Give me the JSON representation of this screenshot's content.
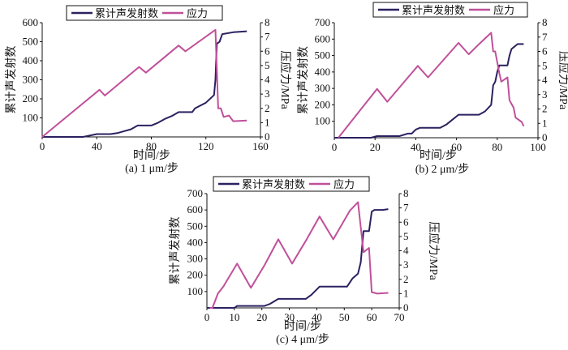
{
  "colors": {
    "ae": "#2b2160",
    "stress": "#c0509a"
  },
  "chart_data": [
    {
      "type": "line",
      "caption": "(a) 1 μm/步",
      "xlabel": "时间/步",
      "ylabel": "累计声发射数",
      "y2label": "压应力/MPa",
      "xlim": [
        0,
        160
      ],
      "xticks": [
        0,
        40,
        80,
        120,
        160
      ],
      "ylim": [
        0,
        600
      ],
      "yticks": [
        100,
        200,
        300,
        400,
        500,
        600
      ],
      "y2lim": [
        0,
        8
      ],
      "y2ticks": [
        0,
        1,
        2,
        3,
        4,
        5,
        6,
        7,
        8
      ],
      "legend": [
        "累计声发射数",
        "应力"
      ],
      "series": [
        {
          "name": "累计声发射数",
          "axis": "left",
          "points": [
            [
              0,
              0
            ],
            [
              30,
              0
            ],
            [
              40,
              15
            ],
            [
              50,
              15
            ],
            [
              55,
              20
            ],
            [
              60,
              30
            ],
            [
              65,
              40
            ],
            [
              70,
              60
            ],
            [
              80,
              60
            ],
            [
              85,
              75
            ],
            [
              90,
              95
            ],
            [
              95,
              110
            ],
            [
              100,
              130
            ],
            [
              110,
              130
            ],
            [
              112,
              150
            ],
            [
              120,
              180
            ],
            [
              126,
              220
            ],
            [
              127,
              300
            ],
            [
              128,
              490
            ],
            [
              130,
              500
            ],
            [
              132,
              540
            ],
            [
              140,
              550
            ],
            [
              150,
              555
            ]
          ]
        },
        {
          "name": "应力",
          "axis": "right",
          "points": [
            [
              0,
              0
            ],
            [
              42,
              3.3
            ],
            [
              46,
              2.9
            ],
            [
              71,
              4.9
            ],
            [
              76,
              4.5
            ],
            [
              100,
              6.4
            ],
            [
              105,
              6.0
            ],
            [
              127,
              7.5
            ],
            [
              129,
              2.0
            ],
            [
              131,
              2.0
            ],
            [
              133,
              1.4
            ],
            [
              137,
              1.5
            ],
            [
              140,
              1.1
            ],
            [
              150,
              1.15
            ]
          ]
        }
      ]
    },
    {
      "type": "line",
      "caption": "(b) 2 μm/步",
      "xlabel": "时间/步",
      "ylabel": "累计声发射数",
      "y2label": "压应力/MPa",
      "xlim": [
        0,
        100
      ],
      "xticks": [
        0,
        20,
        40,
        60,
        80,
        100
      ],
      "ylim": [
        0,
        700
      ],
      "yticks": [
        100,
        200,
        300,
        400,
        500,
        600,
        700
      ],
      "y2lim": [
        0,
        8
      ],
      "y2ticks": [
        0,
        1,
        2,
        3,
        4,
        5,
        6,
        7,
        8
      ],
      "legend": [
        "累计声发射数",
        "应力"
      ],
      "series": [
        {
          "name": "累计声发射数",
          "axis": "left",
          "points": [
            [
              0,
              0
            ],
            [
              18,
              0
            ],
            [
              21,
              10
            ],
            [
              32,
              10
            ],
            [
              36,
              25
            ],
            [
              38,
              25
            ],
            [
              40,
              50
            ],
            [
              42,
              60
            ],
            [
              52,
              60
            ],
            [
              55,
              80
            ],
            [
              58,
              110
            ],
            [
              61,
              140
            ],
            [
              71,
              140
            ],
            [
              74,
              160
            ],
            [
              77,
              200
            ],
            [
              78,
              320
            ],
            [
              79,
              340
            ],
            [
              80,
              400
            ],
            [
              81,
              440
            ],
            [
              85,
              440
            ],
            [
              86,
              500
            ],
            [
              87,
              540
            ],
            [
              90,
              570
            ],
            [
              93,
              570
            ]
          ]
        },
        {
          "name": "应力",
          "axis": "right",
          "points": [
            [
              2,
              0
            ],
            [
              21,
              3.4
            ],
            [
              26,
              2.5
            ],
            [
              41,
              5.0
            ],
            [
              46,
              4.2
            ],
            [
              61,
              6.6
            ],
            [
              66,
              5.8
            ],
            [
              71,
              6.5
            ],
            [
              77,
              7.3
            ],
            [
              78,
              6.0
            ],
            [
              79,
              6.0
            ],
            [
              81,
              4.5
            ],
            [
              82,
              3.9
            ],
            [
              85,
              4.2
            ],
            [
              86,
              2.6
            ],
            [
              88,
              2.1
            ],
            [
              89,
              1.4
            ],
            [
              92,
              1.1
            ],
            [
              93,
              0.8
            ]
          ]
        }
      ]
    },
    {
      "type": "line",
      "caption": "(c) 4 μm/步",
      "xlabel": "时间/步",
      "ylabel": "累计声发射数",
      "y2label": "压应力/MPa",
      "xlim": [
        0,
        70
      ],
      "xticks": [
        0,
        10,
        20,
        30,
        40,
        50,
        60,
        70
      ],
      "ylim": [
        0,
        700
      ],
      "yticks": [
        100,
        200,
        300,
        400,
        500,
        600,
        700
      ],
      "y2lim": [
        0,
        8
      ],
      "y2ticks": [
        0,
        1,
        2,
        3,
        4,
        5,
        6,
        7,
        8
      ],
      "legend": [
        "累计声发射数",
        "应力"
      ],
      "series": [
        {
          "name": "累计声发射数",
          "axis": "left",
          "points": [
            [
              0,
              0
            ],
            [
              10,
              0
            ],
            [
              11,
              12
            ],
            [
              21,
              12
            ],
            [
              23,
              25
            ],
            [
              26,
              55
            ],
            [
              36,
              55
            ],
            [
              38,
              80
            ],
            [
              41,
              130
            ],
            [
              51,
              130
            ],
            [
              53,
              180
            ],
            [
              55,
              210
            ],
            [
              56,
              280
            ],
            [
              57,
              470
            ],
            [
              59,
              470
            ],
            [
              60,
              590
            ],
            [
              61,
              600
            ],
            [
              64,
              600
            ],
            [
              66,
              605
            ]
          ]
        },
        {
          "name": "应力",
          "axis": "right",
          "points": [
            [
              1,
              0
            ],
            [
              2,
              0
            ],
            [
              4,
              1.0
            ],
            [
              6,
              1.5
            ],
            [
              11,
              3.1
            ],
            [
              16,
              1.4
            ],
            [
              21,
              3.0
            ],
            [
              26,
              4.8
            ],
            [
              31,
              3.1
            ],
            [
              36,
              4.7
            ],
            [
              41,
              6.4
            ],
            [
              46,
              4.8
            ],
            [
              52,
              6.8
            ],
            [
              55,
              7.4
            ],
            [
              57,
              3.9
            ],
            [
              59,
              4.2
            ],
            [
              60,
              1.1
            ],
            [
              62,
              1.0
            ],
            [
              66,
              1.05
            ]
          ]
        }
      ]
    }
  ]
}
